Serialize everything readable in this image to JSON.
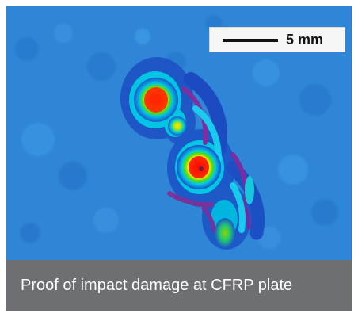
{
  "figure": {
    "scale_bar_label": "5 mm",
    "caption": "Proof of impact damage at CFRP plate"
  },
  "colors": {
    "background_blue": "#2f86d6",
    "caption_bg": "#6d6f73",
    "caption_text": "#ffffff",
    "scalebar_bg": "#f6f6f6"
  },
  "icons": {
    "scale_bar": "scale-bar-icon"
  }
}
